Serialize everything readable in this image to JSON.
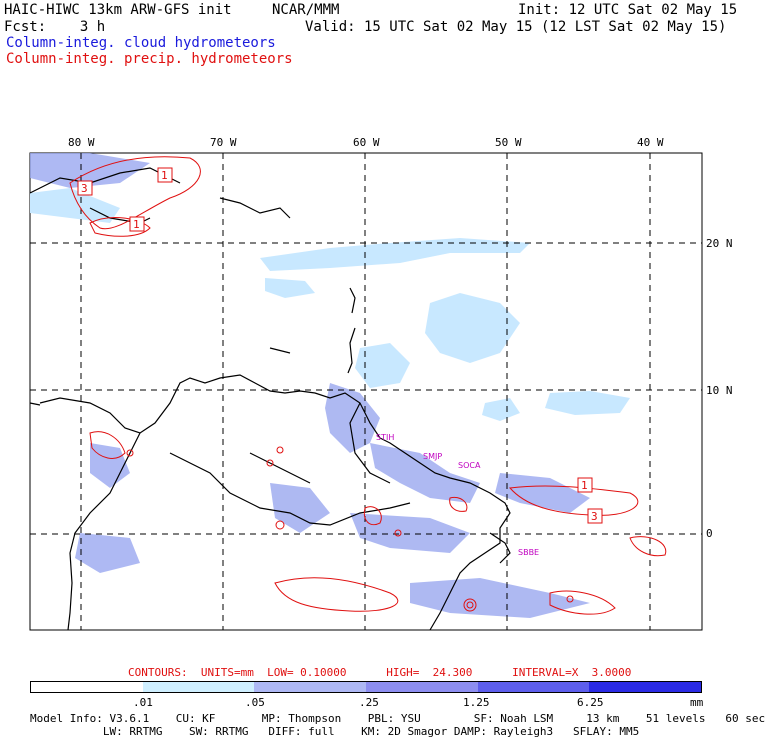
{
  "header": {
    "line1_left": "HAIC-HIWC 13km ARW-GFS init",
    "line1_mid": "NCAR/MMM",
    "line1_right": "Init: 12 UTC Sat 02 May 15",
    "line2_left": "Fcst:    3 h",
    "line2_right": "Valid: 15 UTC Sat 02 May 15 (12 LST Sat 02 May 15)",
    "legend_blue": "Column-integ. cloud hydrometeors",
    "legend_red": "Column-integ. precip. hydrometeors"
  },
  "map": {
    "lon_labels": [
      "80 W",
      "70 W",
      "60 W",
      "50 W",
      "40 W"
    ],
    "lat_labels": [
      "20 N",
      "10 N",
      "0"
    ],
    "stations": [
      "STIH",
      "SMJP",
      "SOCA",
      "SBBE"
    ],
    "contour_marks": [
      "3",
      "1",
      "1",
      "1",
      "3"
    ],
    "colors": {
      "cloud_fill": "#c8e8ff",
      "cloud_mid": "#9aa8f0",
      "precip_line": "#e01010",
      "grid": "#000000"
    }
  },
  "contours": {
    "text": "CONTOURS:  UNITS=mm  LOW= 0.10000      HIGH=  24.300      INTERVAL=X  3.0000"
  },
  "colorbar": {
    "colors": [
      "#ffffff",
      "#cfefff",
      "#aeb8f4",
      "#8d8ef0",
      "#5d5eec",
      "#2a2ae4",
      "#1010e0"
    ],
    "labels": [
      ".01",
      ".05",
      ".25",
      "1.25",
      "6.25"
    ],
    "unit": "mm"
  },
  "footer": {
    "line1": "Model Info: V3.6.1    CU: KF       MP: Thompson    PBL: YSU        SF: Noah LSM     13 km    51 levels   60 sec",
    "line2": "           LW: RRTMG    SW: RRTMG   DIFF: full    KM: 2D Smagor DAMP: Rayleigh3   SFLAY: MM5"
  }
}
